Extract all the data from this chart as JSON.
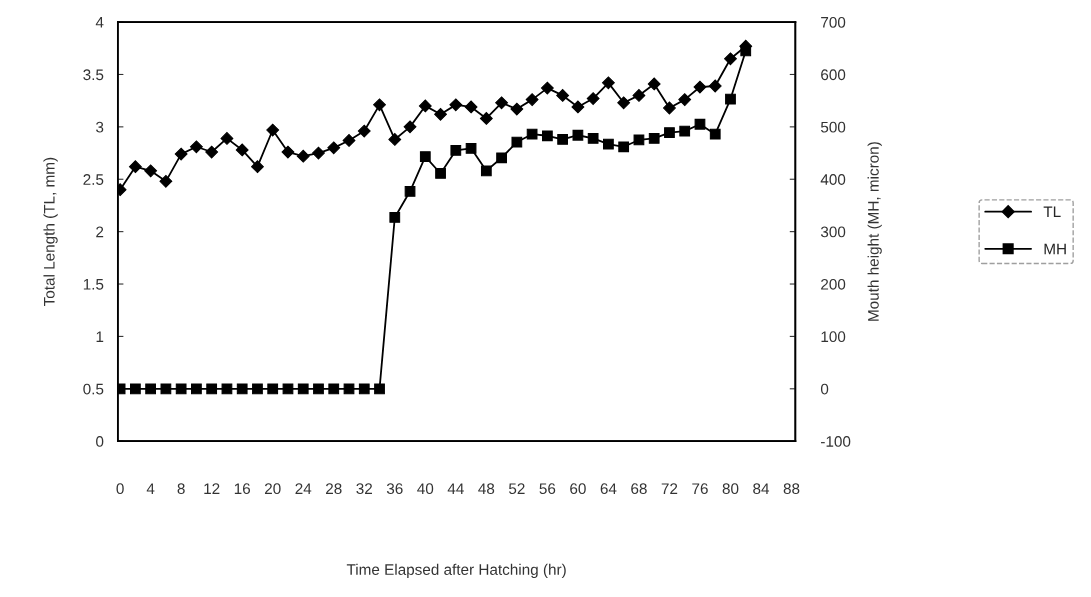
{
  "chart_data": {
    "type": "line",
    "xlabel": "Time Elapsed after Hatching (hr)",
    "ylabel": "Total Length (TL, mm)",
    "y2label": "Mouth height (MH, micron)",
    "x": [
      0,
      2,
      4,
      6,
      8,
      10,
      12,
      14,
      16,
      18,
      20,
      22,
      24,
      26,
      28,
      30,
      32,
      34,
      36,
      38,
      40,
      42,
      44,
      46,
      48,
      50,
      52,
      54,
      56,
      58,
      60,
      62,
      64,
      66,
      68,
      70,
      72,
      74,
      76,
      78,
      80,
      82
    ],
    "series": [
      {
        "name": "TL",
        "color": "#000000",
        "marker": "diamond",
        "values": [
          2.4,
          2.62,
          2.58,
          2.48,
          2.74,
          2.81,
          2.76,
          2.89,
          2.78,
          2.62,
          2.97,
          2.76,
          2.72,
          2.75,
          2.8,
          2.87,
          2.96,
          3.21,
          2.88,
          3.0,
          3.2,
          3.12,
          3.21,
          3.19,
          3.08,
          3.23,
          3.17,
          3.26,
          3.37,
          3.3,
          3.19,
          3.27,
          3.42,
          3.23,
          3.3,
          3.41,
          3.18,
          3.26,
          3.38,
          3.39,
          3.65,
          3.77
        ]
      },
      {
        "name": "MH",
        "color": "#000000",
        "marker": "square",
        "axis": "y2",
        "values": [
          0,
          0,
          0,
          0,
          0,
          0,
          0,
          0,
          0,
          0,
          0,
          0,
          0,
          0,
          0,
          0,
          0,
          0,
          327,
          377,
          443,
          411,
          455,
          459,
          416,
          441,
          471,
          486,
          483,
          476,
          484,
          478,
          467,
          462,
          475,
          478,
          489,
          492,
          505,
          486,
          553,
          645
        ]
      }
    ],
    "xlim": [
      -0.3,
      88.5
    ],
    "xticks": [
      0,
      4,
      8,
      12,
      16,
      20,
      24,
      28,
      32,
      36,
      40,
      44,
      48,
      52,
      56,
      60,
      64,
      68,
      72,
      76,
      80,
      84,
      88
    ],
    "ylim": [
      0,
      4
    ],
    "yticks": [
      0,
      0.5,
      1,
      1.5,
      2,
      2.5,
      3,
      3.5,
      4
    ],
    "y2lim": [
      -100,
      700
    ],
    "y2ticks": [
      -100,
      0,
      100,
      200,
      300,
      400,
      500,
      600,
      700
    ],
    "legend": "right",
    "grid": false,
    "line_style": "solid"
  }
}
